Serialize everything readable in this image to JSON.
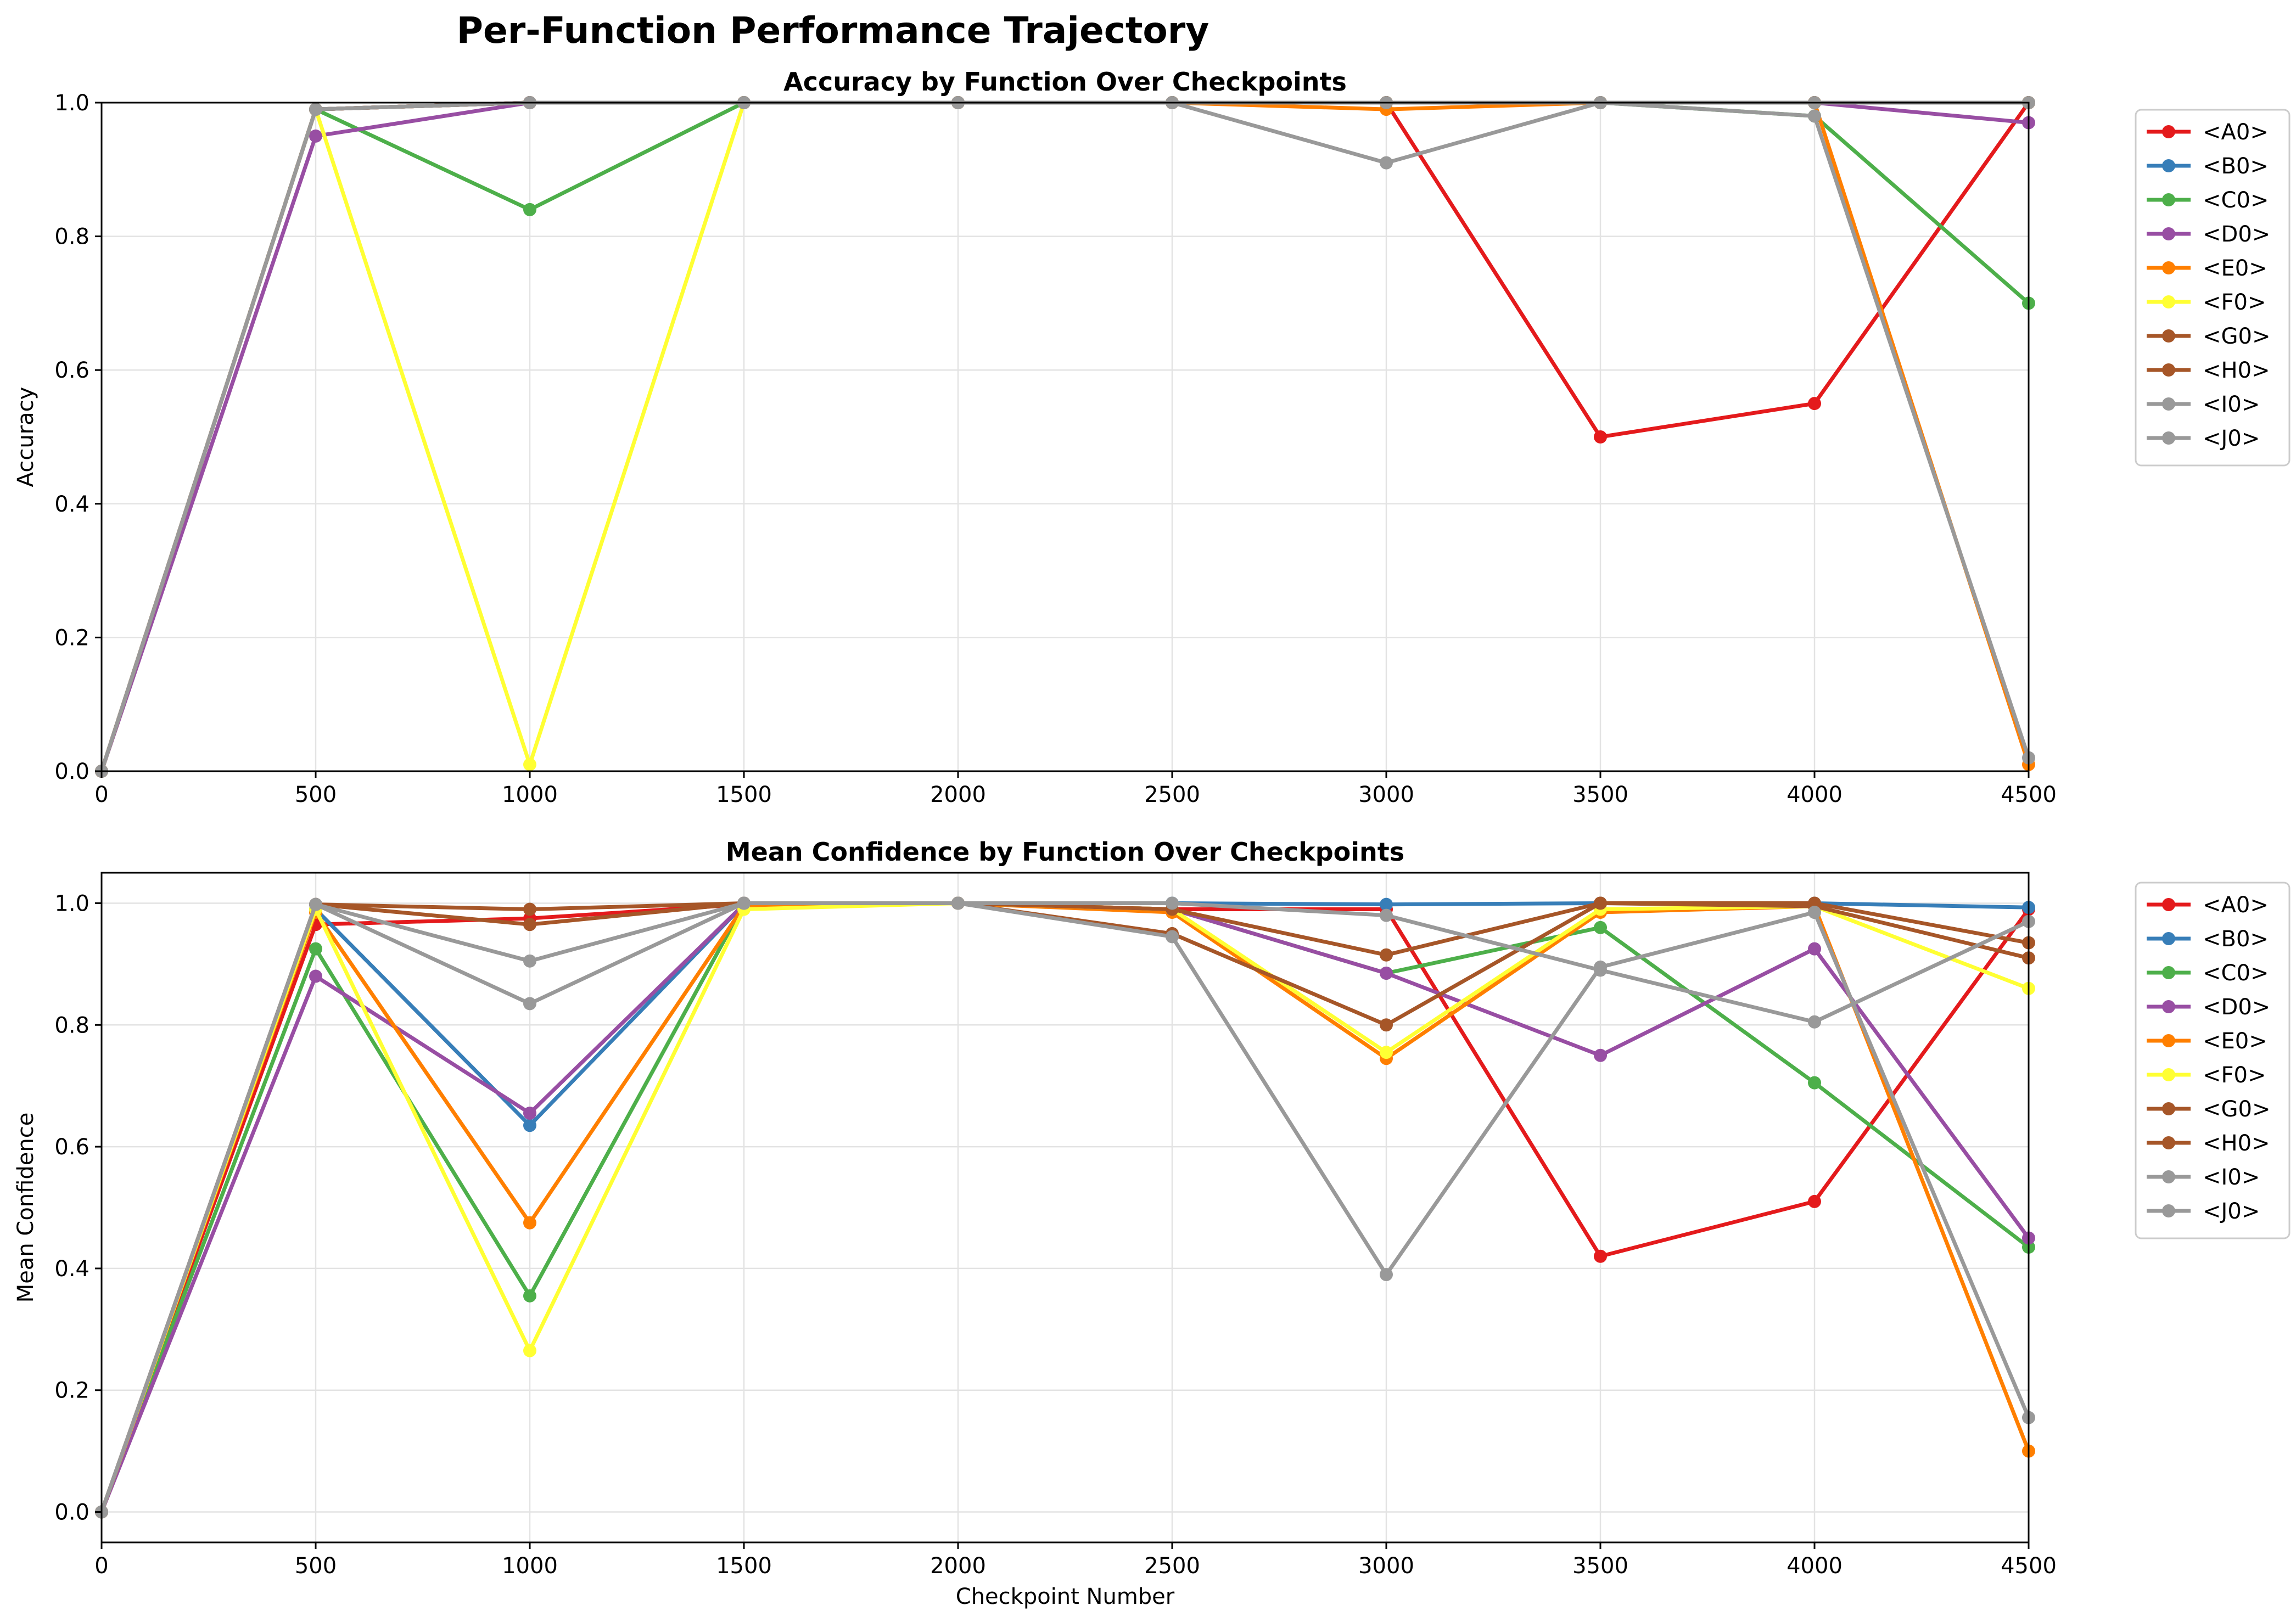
{
  "figure_title": "Per-Function Performance Trajectory",
  "colors": {
    "<A0>": "#e41a1c",
    "<B0>": "#377eb8",
    "<C0>": "#4daf4a",
    "<D0>": "#984ea3",
    "<E0>": "#ff7f00",
    "<F0>": "#ffff33",
    "<G0>": "#a65628",
    "<H0>": "#a65628",
    "<I0>": "#999999",
    "<J0>": "#999999"
  },
  "chart_data": [
    {
      "type": "line",
      "title": "Accuracy by Function Over Checkpoints",
      "xlabel": "",
      "ylabel": "Accuracy",
      "xlim": [
        0,
        4500
      ],
      "ylim": [
        0,
        1.0
      ],
      "xticks": [
        0,
        500,
        1000,
        1500,
        2000,
        2500,
        3000,
        3500,
        4000,
        4500
      ],
      "yticks": [
        0.0,
        0.2,
        0.4,
        0.6,
        0.8,
        1.0
      ],
      "ytick_labels": [
        "0.0",
        "0.2",
        "0.4",
        "0.6",
        "0.8",
        "1.0"
      ],
      "grid": true,
      "legend": "outside-right-top",
      "x": [
        0,
        500,
        1000,
        1500,
        2000,
        2500,
        3000,
        3500,
        4000,
        4500
      ],
      "series": [
        {
          "name": "<A0>",
          "values": [
            0.0,
            0.99,
            1.0,
            1.0,
            1.0,
            1.0,
            1.0,
            0.5,
            0.55,
            1.0
          ]
        },
        {
          "name": "<B0>",
          "values": [
            0.0,
            0.99,
            1.0,
            1.0,
            1.0,
            1.0,
            1.0,
            1.0,
            1.0,
            1.0
          ]
        },
        {
          "name": "<C0>",
          "values": [
            0.0,
            0.99,
            0.84,
            1.0,
            1.0,
            1.0,
            1.0,
            1.0,
            0.98,
            0.7
          ]
        },
        {
          "name": "<D0>",
          "values": [
            0.0,
            0.95,
            1.0,
            1.0,
            1.0,
            1.0,
            1.0,
            1.0,
            1.0,
            0.97
          ]
        },
        {
          "name": "<E0>",
          "values": [
            0.0,
            0.99,
            1.0,
            1.0,
            1.0,
            1.0,
            0.99,
            1.0,
            1.0,
            0.01
          ]
        },
        {
          "name": "<F0>",
          "values": [
            0.0,
            0.99,
            0.01,
            1.0,
            1.0,
            1.0,
            1.0,
            1.0,
            1.0,
            1.0
          ]
        },
        {
          "name": "<G0>",
          "values": [
            0.0,
            0.99,
            1.0,
            1.0,
            1.0,
            1.0,
            1.0,
            1.0,
            1.0,
            1.0
          ]
        },
        {
          "name": "<H0>",
          "values": [
            0.0,
            0.99,
            1.0,
            1.0,
            1.0,
            1.0,
            1.0,
            1.0,
            1.0,
            1.0
          ]
        },
        {
          "name": "<I0>",
          "values": [
            0.0,
            0.99,
            1.0,
            1.0,
            1.0,
            1.0,
            1.0,
            1.0,
            1.0,
            1.0
          ]
        },
        {
          "name": "<J0>",
          "values": [
            0.0,
            0.99,
            1.0,
            1.0,
            1.0,
            1.0,
            0.91,
            1.0,
            0.98,
            0.02
          ]
        }
      ]
    },
    {
      "type": "line",
      "title": "Mean Confidence by Function Over Checkpoints",
      "xlabel": "Checkpoint Number",
      "ylabel": "Mean Confidence",
      "xlim": [
        0,
        4500
      ],
      "ylim": [
        -0.05,
        1.05
      ],
      "xticks": [
        0,
        500,
        1000,
        1500,
        2000,
        2500,
        3000,
        3500,
        4000,
        4500
      ],
      "yticks": [
        0.0,
        0.2,
        0.4,
        0.6,
        0.8,
        1.0
      ],
      "ytick_labels": [
        "0.0",
        "0.2",
        "0.4",
        "0.6",
        "0.8",
        "1.0"
      ],
      "grid": true,
      "legend": "outside-right-top",
      "x": [
        0,
        500,
        1000,
        1500,
        2000,
        2500,
        3000,
        3500,
        4000,
        4500
      ],
      "series": [
        {
          "name": "<A0>",
          "values": [
            0.0,
            0.965,
            0.975,
            0.998,
            1.0,
            0.99,
            0.99,
            0.42,
            0.51,
            0.99
          ]
        },
        {
          "name": "<B0>",
          "values": [
            0.0,
            0.99,
            0.635,
            0.998,
            1.0,
            1.0,
            0.998,
            1.0,
            1.0,
            0.993
          ]
        },
        {
          "name": "<C0>",
          "values": [
            0.0,
            0.925,
            0.355,
            0.998,
            1.0,
            0.99,
            0.885,
            0.96,
            0.705,
            0.435
          ]
        },
        {
          "name": "<D0>",
          "values": [
            0.0,
            0.88,
            0.655,
            0.998,
            1.0,
            0.99,
            0.885,
            0.75,
            0.925,
            0.45
          ]
        },
        {
          "name": "<E0>",
          "values": [
            0.0,
            0.985,
            0.475,
            0.995,
            1.0,
            0.985,
            0.745,
            0.985,
            0.995,
            0.1
          ]
        },
        {
          "name": "<F0>",
          "values": [
            0.0,
            0.99,
            0.265,
            0.99,
            1.0,
            0.99,
            0.755,
            0.99,
            0.995,
            0.86
          ]
        },
        {
          "name": "<G0>",
          "values": [
            0.0,
            0.998,
            0.99,
            1.0,
            1.0,
            0.95,
            0.8,
            1.0,
            1.0,
            0.935
          ]
        },
        {
          "name": "<H0>",
          "values": [
            0.0,
            0.998,
            0.965,
            1.0,
            1.0,
            0.99,
            0.915,
            1.0,
            0.995,
            0.91
          ]
        },
        {
          "name": "<I0>",
          "values": [
            0.0,
            0.998,
            0.905,
            1.0,
            1.0,
            1.0,
            0.98,
            0.89,
            0.805,
            0.97
          ]
        },
        {
          "name": "<J0>",
          "values": [
            0.0,
            0.998,
            0.835,
            1.0,
            1.0,
            0.945,
            0.39,
            0.895,
            0.985,
            0.155
          ]
        }
      ]
    }
  ]
}
